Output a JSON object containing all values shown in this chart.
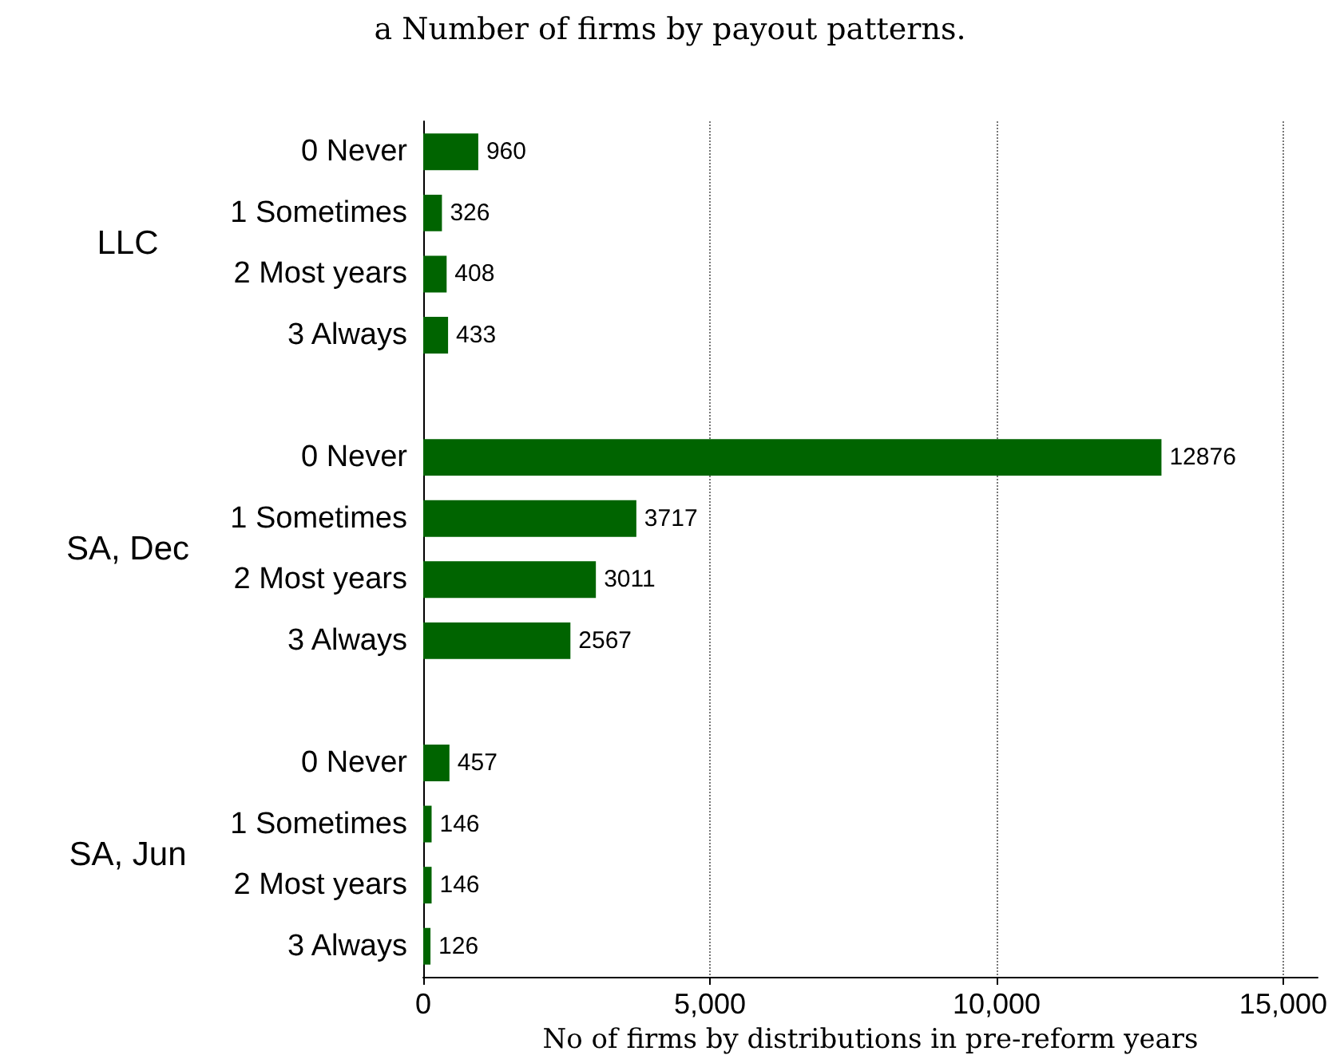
{
  "chart_data": {
    "type": "bar",
    "orientation": "horizontal",
    "title": "a Number of firms by payout patterns.",
    "xlabel": "No of firms by distributions in pre-reform years",
    "categories": [
      "0 Never",
      "1 Sometimes",
      "2 Most years",
      "3 Always",
      null,
      "0 Never",
      "1 Sometimes",
      "2 Most years",
      "3 Always",
      null,
      "0 Never",
      "1 Sometimes",
      "2 Most years",
      "3 Always"
    ],
    "values": [
      960,
      326,
      408,
      433,
      null,
      12876,
      3717,
      3011,
      2567,
      null,
      457,
      146,
      146,
      126
    ],
    "color": "#006400",
    "annotations": [
      "LLC",
      "SA, Dec",
      "SA, Jun"
    ],
    "xlim": [
      0,
      15600
    ],
    "xticks": [
      0,
      {
        "value": 5000,
        "label": "5,000"
      },
      {
        "value": 10000,
        "label": "10,000"
      },
      {
        "value": 15000,
        "label": "15,000"
      }
    ],
    "grid": "x",
    "data_labels": true
  }
}
